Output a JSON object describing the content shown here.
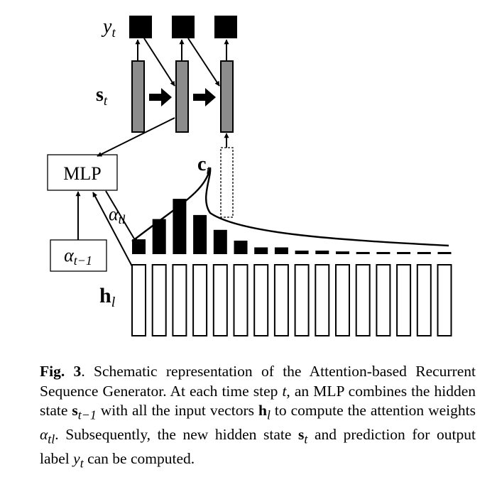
{
  "labels": {
    "y_t": "y",
    "y_t_sub": "t",
    "s_t": "s",
    "s_t_sub": "t",
    "mlp": "MLP",
    "alpha_prev": "α",
    "alpha_prev_sub": "t−1",
    "h_l": "h",
    "h_l_sub": "l",
    "c_t": "c",
    "c_t_sub": "t",
    "alpha_tl": "α",
    "alpha_tl_sub": "tl"
  },
  "caption": {
    "fig_label": "Fig. 3",
    "p1": ". Schematic representation of the Attention-based Recurrent Sequence Generator. At each time step ",
    "t1": "t",
    "p2": ", an MLP combines the hidden state ",
    "s_prev": "s",
    "s_prev_sub": "t−1",
    "p3": " with all the input vectors ",
    "h": "h",
    "h_sub": "l",
    "p4": " to compute the attention weights ",
    "alpha": "α",
    "alpha_sub": "tl",
    "p5": ". Subsequently, the new hidden state ",
    "s_new": "s",
    "s_new_sub": "t",
    "p6": " and prediction for output label ",
    "y": "y",
    "y_sub": "t",
    "p7": " can be computed."
  },
  "attention_weights": [
    0.55,
    1.3,
    2.05,
    1.45,
    0.9,
    0.5,
    0.25,
    0.25,
    0.13,
    0.13,
    0.1,
    0.08,
    0.06,
    0.05,
    0.05,
    0.05
  ]
}
